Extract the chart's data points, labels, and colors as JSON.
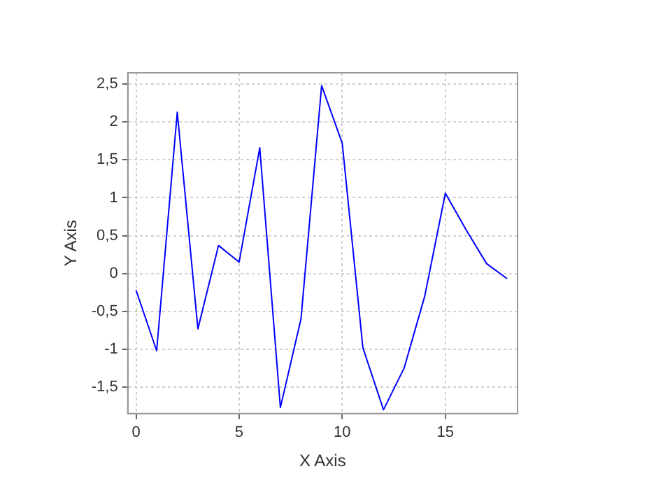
{
  "chart_data": {
    "type": "line",
    "xlabel": "X Axis",
    "ylabel": "Y Axis",
    "x": [
      0,
      1,
      2,
      3,
      4,
      5,
      6,
      7,
      8,
      9,
      10,
      11,
      12,
      13,
      14,
      15,
      16,
      17,
      18
    ],
    "series": [
      {
        "color": "#0000ff",
        "values": [
          -0.22,
          -1.02,
          2.13,
          -0.73,
          0.37,
          0.15,
          1.66,
          -1.77,
          -0.6,
          2.48,
          1.72,
          -0.98,
          -1.8,
          -1.25,
          -0.3,
          1.06,
          0.58,
          0.13,
          -0.07
        ]
      }
    ],
    "xlim": [
      -0.4,
      18.5
    ],
    "xticks": [
      0,
      5,
      10,
      15
    ],
    "ylim": [
      -1.85,
      2.65
    ],
    "yticks": [
      {
        "value": -1.5,
        "label": "-1,5"
      },
      -1,
      {
        "value": -0.5,
        "label": "-0,5"
      },
      0,
      {
        "value": 0.5,
        "label": "0,5"
      },
      1,
      {
        "value": 1.5,
        "label": "1,5"
      },
      2,
      {
        "value": 2.5,
        "label": "2,5"
      }
    ],
    "grid": true,
    "line_style": "solid",
    "marker": "none",
    "legend": false
  }
}
